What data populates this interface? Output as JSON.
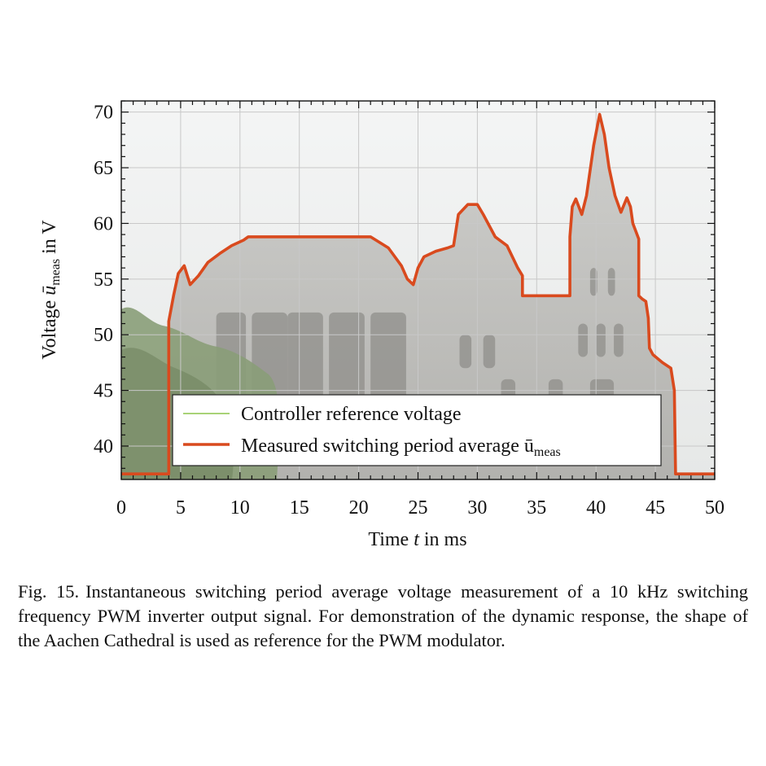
{
  "chart_data": {
    "type": "line",
    "xlabel": "Time t in ms",
    "ylabel": "Voltage ū_meas in V",
    "xlim": [
      0,
      50
    ],
    "ylim": [
      37,
      71
    ],
    "xticks": [
      "0",
      "5",
      "10",
      "15",
      "20",
      "25",
      "30",
      "35",
      "40",
      "45",
      "50"
    ],
    "yticks": [
      "40",
      "45",
      "50",
      "55",
      "60",
      "65",
      "70"
    ],
    "grid": true,
    "legend_position": "bottom-center",
    "series": [
      {
        "name": "Controller reference voltage",
        "color": "#8bc34a",
        "x": [
          0,
          4.0,
          4.0,
          4.4,
          4.8,
          5.3,
          5.8,
          6.5,
          7.3,
          8.3,
          9.3,
          10.3,
          10.7,
          11.5,
          15,
          20,
          21,
          22.5,
          23.6,
          24.1,
          24.6,
          25.0,
          25.5,
          26.5,
          27.5,
          28.0,
          28.4,
          29.2,
          30.0,
          30.5,
          31.5,
          32.5,
          33.4,
          33.8,
          33.8,
          35.5,
          37.8,
          37.8,
          38.0,
          38.3,
          38.8,
          39.2,
          39.8,
          40.3,
          40.7,
          41.1,
          41.6,
          42.1,
          42.6,
          42.9,
          43.1,
          43.6,
          43.6,
          43.9,
          44.2,
          44.4,
          44.5,
          44.8,
          45.6,
          46.3,
          46.6,
          46.7,
          47.5,
          50
        ],
        "values": [
          37.5,
          37.5,
          51.2,
          53.5,
          55.5,
          56.2,
          54.5,
          55.3,
          56.5,
          57.3,
          58.0,
          58.5,
          58.8,
          58.8,
          58.8,
          58.8,
          58.8,
          57.8,
          56.2,
          55.0,
          54.5,
          56.0,
          57.0,
          57.5,
          57.8,
          58.0,
          60.8,
          61.7,
          61.7,
          60.8,
          58.8,
          58.0,
          56.0,
          55.3,
          53.5,
          53.5,
          53.5,
          58.8,
          61.5,
          62.2,
          60.8,
          62.5,
          67.0,
          69.8,
          68.0,
          65.0,
          62.5,
          61.0,
          62.3,
          61.5,
          60.0,
          58.6,
          53.5,
          53.2,
          53.0,
          51.5,
          48.8,
          48.2,
          47.5,
          47.0,
          45.0,
          37.5,
          37.5,
          37.5
        ]
      },
      {
        "name": "Measured switching period average ū_meas",
        "color": "#d94a1e",
        "x": [
          0,
          4.0,
          4.0,
          4.4,
          4.8,
          5.3,
          5.8,
          6.5,
          7.3,
          8.3,
          9.3,
          10.3,
          10.7,
          11.5,
          15,
          20,
          21,
          22.5,
          23.6,
          24.1,
          24.6,
          25.0,
          25.5,
          26.5,
          27.5,
          28.0,
          28.4,
          29.2,
          30.0,
          30.5,
          31.5,
          32.5,
          33.4,
          33.8,
          33.8,
          35.5,
          37.8,
          37.8,
          38.0,
          38.3,
          38.8,
          39.2,
          39.8,
          40.3,
          40.7,
          41.1,
          41.6,
          42.1,
          42.6,
          42.9,
          43.1,
          43.6,
          43.6,
          43.9,
          44.2,
          44.4,
          44.5,
          44.8,
          45.6,
          46.3,
          46.6,
          46.7,
          47.5,
          50
        ],
        "values": [
          37.5,
          37.5,
          51.2,
          53.5,
          55.5,
          56.2,
          54.5,
          55.3,
          56.5,
          57.3,
          58.0,
          58.5,
          58.8,
          58.8,
          58.8,
          58.8,
          58.8,
          57.8,
          56.2,
          55.0,
          54.5,
          56.0,
          57.0,
          57.5,
          57.8,
          58.0,
          60.8,
          61.7,
          61.7,
          60.8,
          58.8,
          58.0,
          56.0,
          55.3,
          53.5,
          53.5,
          53.5,
          58.8,
          61.5,
          62.2,
          60.8,
          62.5,
          67.0,
          69.8,
          68.0,
          65.0,
          62.5,
          61.0,
          62.3,
          61.5,
          60.0,
          58.6,
          53.5,
          53.2,
          53.0,
          51.5,
          48.8,
          48.2,
          47.5,
          47.0,
          45.0,
          37.5,
          37.5,
          37.5
        ]
      }
    ],
    "legend": {
      "entries": [
        "Controller reference voltage",
        "Measured switching period average ū"
      ],
      "subscript": "meas"
    }
  },
  "axes": {
    "ylabel_main": "Voltage ",
    "ylabel_sym": "ū",
    "ylabel_sub": "meas",
    "ylabel_unit": " in V",
    "xlabel_main": "Time ",
    "xlabel_sym": "t",
    "xlabel_unit": " in ms"
  },
  "background": {
    "description_icon": "cathedral-photo",
    "sky": "#eceeee",
    "stone": "#b9b9b6",
    "tree": "#8a9d78"
  },
  "caption": {
    "label": "Fig. 15.",
    "text": "Instantaneous switching period average voltage measurement of a 10 kHz switching frequency PWM inverter output signal. For demonstration of the dynamic response, the shape of the Aachen Cathedral is used as reference for the PWM modulator."
  }
}
